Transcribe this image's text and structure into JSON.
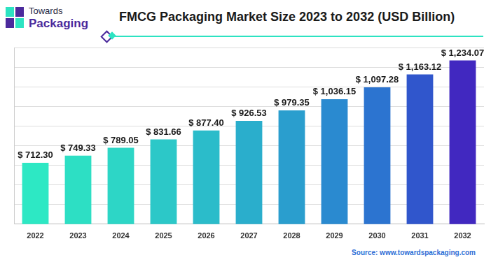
{
  "logo": {
    "line1": "Towards",
    "line2": "Packaging"
  },
  "chart_data": {
    "type": "bar",
    "title": "FMCG Packaging Market Size 2023 to 2032 (USD Billion)",
    "source": "Source: www.towardspackaging.com",
    "categories": [
      "2022",
      "2023",
      "2024",
      "2025",
      "2026",
      "2027",
      "2028",
      "2029",
      "2030",
      "2031",
      "2032"
    ],
    "values": [
      712.3,
      749.33,
      789.05,
      831.66,
      877.4,
      926.53,
      979.35,
      1036.15,
      1097.28,
      1163.12,
      1234.07
    ],
    "value_labels": [
      "$ 712.30",
      "$ 749.33",
      "$ 789.05",
      "$ 831.66",
      "$ 877.40",
      "$ 926.53",
      "$ 979.35",
      "$ 1,036.15",
      "$ 1,097.28",
      "$ 1,163.12",
      "$ 1,234.07"
    ],
    "colors": [
      "#2de8c4",
      "#2ddfc4",
      "#2dd6c6",
      "#2cc8c8",
      "#2bbcca",
      "#2aaecc",
      "#2a9ece",
      "#2a8ad0",
      "#2c74d0",
      "#3056cc",
      "#4128c0"
    ],
    "ylim": [
      400,
      1300
    ],
    "yticks": [
      400,
      500,
      600,
      700,
      800,
      900,
      1000,
      1100,
      1200,
      1300
    ],
    "grid": true,
    "data_labels": true,
    "tick_labels": "x"
  }
}
